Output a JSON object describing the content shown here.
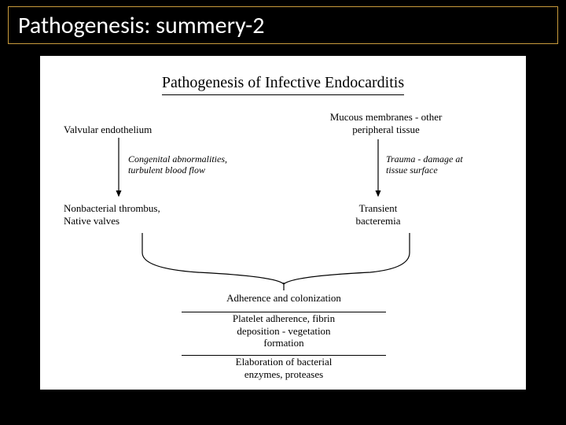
{
  "slide": {
    "title": "Pathogenesis: summery-2",
    "background_color": "#000000",
    "title_border_color": "#c89b3c",
    "title_text_color": "#ffffff",
    "title_fontsize": 30
  },
  "diagram": {
    "type": "flowchart",
    "background_color": "#ffffff",
    "frame_border_color": "#000000",
    "text_color": "#000000",
    "title": "Pathogenesis of Infective Endocarditis",
    "title_fontsize": 20,
    "node_fontsize": 13,
    "label_fontsize": 12,
    "nodes": {
      "left_top": "Valvular endothelium",
      "right_top": "Mucous membranes - other\nperipheral tissue",
      "left_arrow_label": "Congenital abnormalities,\nturbulent blood flow",
      "right_arrow_label": "Trauma - damage at\ntissue surface",
      "left_mid": "Nonbacterial thrombus,\nNative valves",
      "right_mid": "Transient\nbacteremia",
      "merge_1": "Adherence and colonization",
      "merge_2": "Platelet adherence, fibrin\ndeposition - vegetation\nformation",
      "merge_3": "Elaboration of bacterial\nenzymes, proteases"
    },
    "arrow_color": "#000000"
  }
}
